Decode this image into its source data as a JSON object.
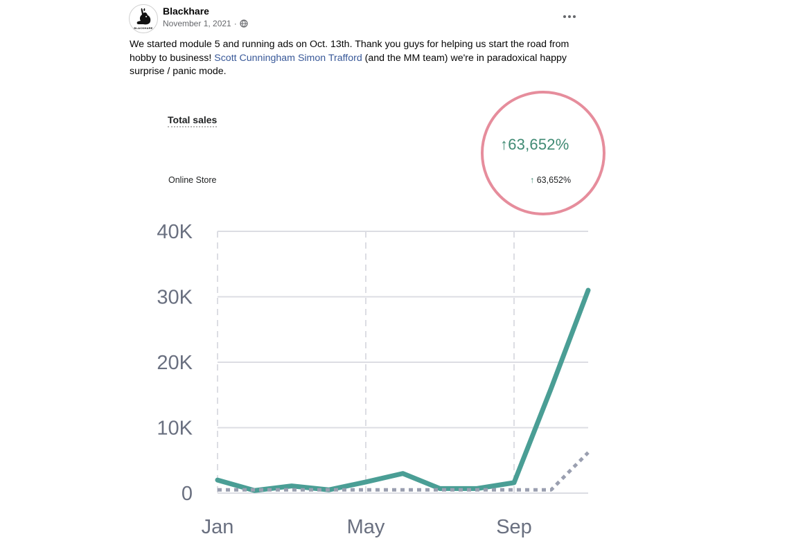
{
  "post": {
    "author": "Blackhare",
    "date": "November 1, 2021",
    "avatar_caption": "BLACKHARE",
    "text_before": "We started module 5 and running ads on Oct. 13th. Thank you guys for helping us start the road from hobby to business! ",
    "mention_1": "Scott Cunningham",
    "mention_sep": " ",
    "mention_2": "Simon Trafford",
    "text_after": " (and the MM team) we're in paradoxical happy surprise / panic mode."
  },
  "report": {
    "total_label": "Total sales",
    "total_change": "63,652%",
    "channel_label": "Online Store",
    "channel_change": "63,652%",
    "arrow": "↑",
    "highlight_color": "#e68d9c",
    "positive_color": "#3f8a73"
  },
  "chart_data": {
    "type": "line",
    "yticks": [
      "0",
      "10K",
      "20K",
      "30K",
      "40K"
    ],
    "ylim": [
      0,
      40000
    ],
    "xticks": [
      {
        "label": "Jan",
        "x": 0
      },
      {
        "label": "May",
        "x": 4
      },
      {
        "label": "Sep",
        "x": 8
      }
    ],
    "xlim": [
      0,
      10
    ],
    "grid": true,
    "series": [
      {
        "style": "solid",
        "color": "#4a9e95",
        "x": [
          0,
          1,
          2,
          3,
          4,
          5,
          6,
          7,
          8,
          9,
          10
        ],
        "values": [
          2000,
          400,
          1100,
          500,
          1700,
          3000,
          700,
          700,
          1600,
          16000,
          31000
        ]
      },
      {
        "style": "dotted",
        "color": "#9a9fb0",
        "x": [
          0,
          1,
          2,
          3,
          4,
          5,
          6,
          7,
          8,
          9,
          10
        ],
        "values": [
          500,
          500,
          500,
          500,
          500,
          500,
          500,
          500,
          500,
          500,
          6200
        ]
      }
    ]
  }
}
